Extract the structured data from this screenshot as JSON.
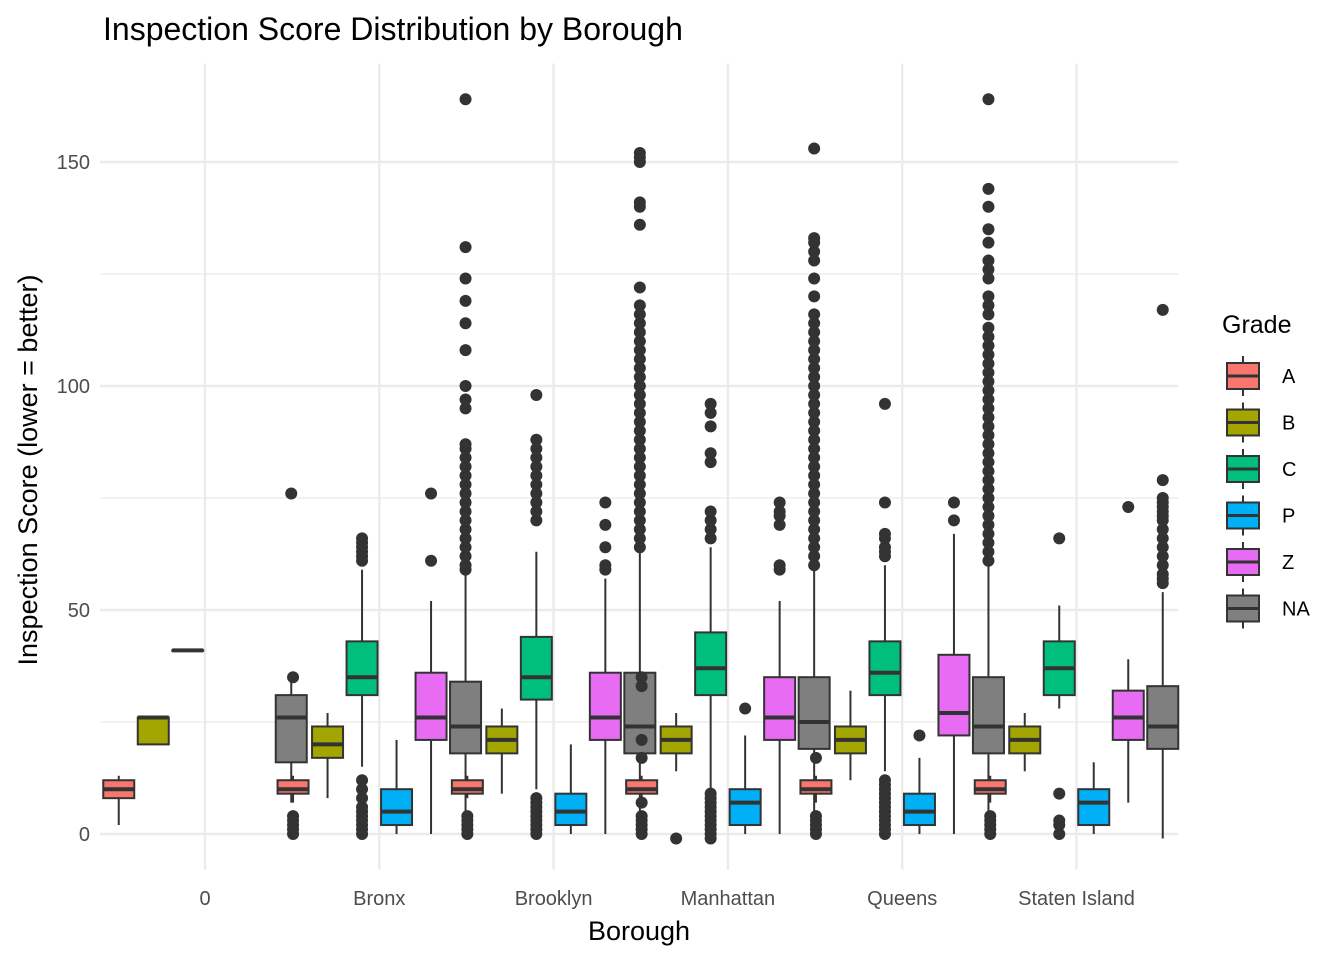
{
  "chart_data": {
    "type": "boxplot",
    "title": "Inspection Score Distribution by Borough",
    "xlabel": "Borough",
    "ylabel": "Inspection Score (lower = better)",
    "ylim": [
      -8,
      172
    ],
    "y_ticks": [
      0,
      50,
      100,
      150
    ],
    "grid": true,
    "legend_title": "Grade",
    "legend_position": "right",
    "categories": [
      "0",
      "Bronx",
      "Brooklyn",
      "Manhattan",
      "Queens",
      "Staten Island"
    ],
    "series": [
      {
        "name": "A",
        "color": "#F8766D"
      },
      {
        "name": "B",
        "color": "#A3A500"
      },
      {
        "name": "C",
        "color": "#00BF7D"
      },
      {
        "name": "P",
        "color": "#00B0F6"
      },
      {
        "name": "Z",
        "color": "#E76BF3"
      },
      {
        "name": "NA",
        "color": "#7F7F7F"
      }
    ],
    "boxes": [
      {
        "category": "0",
        "grade": "A",
        "min": 2,
        "q1": 8,
        "median": 10,
        "q3": 12,
        "max": 13,
        "outliers": []
      },
      {
        "category": "0",
        "grade": "B",
        "min": 20,
        "q1": 20,
        "median": 26,
        "q3": 26,
        "max": 26,
        "outliers": []
      },
      {
        "category": "0",
        "grade": "C",
        "min": 41,
        "q1": 41,
        "median": 41,
        "q3": 41,
        "max": 41,
        "outliers": []
      },
      {
        "category": "0",
        "grade": "NA",
        "min": 7,
        "q1": 16,
        "median": 26,
        "q3": 31,
        "max": 35,
        "outliers": [
          76
        ]
      },
      {
        "category": "Bronx",
        "grade": "A",
        "min": 7,
        "q1": 9,
        "median": 10,
        "q3": 12,
        "max": 13,
        "outliers": [
          0,
          1,
          2,
          3,
          4,
          35
        ]
      },
      {
        "category": "Bronx",
        "grade": "B",
        "min": 8,
        "q1": 17,
        "median": 20,
        "q3": 24,
        "max": 27,
        "outliers": []
      },
      {
        "category": "Bronx",
        "grade": "C",
        "min": 15,
        "q1": 31,
        "median": 35,
        "q3": 43,
        "max": 59,
        "outliers": [
          0,
          1,
          2,
          3,
          4,
          5,
          6,
          8,
          10,
          12,
          61,
          62,
          63,
          64,
          65,
          66
        ]
      },
      {
        "category": "Bronx",
        "grade": "P",
        "min": 0,
        "q1": 2,
        "median": 5,
        "q3": 10,
        "max": 21,
        "outliers": []
      },
      {
        "category": "Bronx",
        "grade": "Z",
        "min": 0,
        "q1": 21,
        "median": 26,
        "q3": 36,
        "max": 52,
        "outliers": [
          61,
          76
        ]
      },
      {
        "category": "Bronx",
        "grade": "NA",
        "min": -1,
        "q1": 18,
        "median": 24,
        "q3": 34,
        "max": 58,
        "outliers": [
          59,
          60,
          62,
          64,
          66,
          68,
          70,
          72,
          74,
          76,
          78,
          80,
          82,
          84,
          86,
          87,
          95,
          97,
          100,
          108,
          114,
          119,
          124,
          131,
          164
        ]
      },
      {
        "category": "Brooklyn",
        "grade": "A",
        "min": 8,
        "q1": 9,
        "median": 10,
        "q3": 12,
        "max": 13,
        "outliers": [
          0,
          1,
          2,
          3,
          4
        ]
      },
      {
        "category": "Brooklyn",
        "grade": "B",
        "min": 9,
        "q1": 18,
        "median": 21,
        "q3": 24,
        "max": 28,
        "outliers": []
      },
      {
        "category": "Brooklyn",
        "grade": "C",
        "min": 10,
        "q1": 30,
        "median": 35,
        "q3": 44,
        "max": 63,
        "outliers": [
          0,
          1,
          2,
          3,
          4,
          5,
          6,
          7,
          8,
          70,
          72,
          74,
          76,
          78,
          80,
          82,
          84,
          86,
          88,
          98
        ]
      },
      {
        "category": "Brooklyn",
        "grade": "P",
        "min": 0,
        "q1": 2,
        "median": 5,
        "q3": 9,
        "max": 20,
        "outliers": []
      },
      {
        "category": "Brooklyn",
        "grade": "Z",
        "min": 0,
        "q1": 21,
        "median": 26,
        "q3": 36,
        "max": 57,
        "outliers": [
          59,
          60,
          64,
          69,
          74
        ]
      },
      {
        "category": "Brooklyn",
        "grade": "NA",
        "min": -1,
        "q1": 18,
        "median": 24,
        "q3": 36,
        "max": 63,
        "outliers": [
          64,
          66,
          68,
          70,
          72,
          74,
          76,
          78,
          80,
          82,
          84,
          86,
          88,
          90,
          92,
          94,
          96,
          98,
          100,
          102,
          104,
          106,
          108,
          110,
          112,
          114,
          116,
          118,
          122,
          136,
          140,
          141,
          150,
          151,
          152
        ]
      },
      {
        "category": "Manhattan",
        "grade": "A",
        "min": 8,
        "q1": 9,
        "median": 10,
        "q3": 12,
        "max": 13,
        "outliers": [
          0,
          1,
          2,
          3,
          4,
          7,
          17,
          21,
          33,
          35
        ]
      },
      {
        "category": "Manhattan",
        "grade": "B",
        "min": 14,
        "q1": 18,
        "median": 21,
        "q3": 24,
        "max": 27,
        "outliers": [
          -1
        ]
      },
      {
        "category": "Manhattan",
        "grade": "C",
        "min": 10,
        "q1": 31,
        "median": 37,
        "q3": 45,
        "max": 64,
        "outliers": [
          -1,
          0,
          1,
          2,
          3,
          4,
          5,
          6,
          7,
          8,
          9,
          66,
          68,
          70,
          72,
          83,
          85,
          91,
          94,
          96
        ]
      },
      {
        "category": "Manhattan",
        "grade": "P",
        "min": 0,
        "q1": 2,
        "median": 7,
        "q3": 10,
        "max": 22,
        "outliers": [
          28
        ]
      },
      {
        "category": "Manhattan",
        "grade": "Z",
        "min": 0,
        "q1": 21,
        "median": 26,
        "q3": 35,
        "max": 52,
        "outliers": [
          59,
          60,
          69,
          71,
          72,
          74
        ]
      },
      {
        "category": "Manhattan",
        "grade": "NA",
        "min": -1,
        "q1": 19,
        "median": 25,
        "q3": 35,
        "max": 59,
        "outliers": [
          60,
          62,
          64,
          66,
          68,
          70,
          72,
          74,
          76,
          78,
          80,
          82,
          84,
          86,
          88,
          90,
          92,
          94,
          96,
          98,
          100,
          102,
          104,
          106,
          108,
          110,
          112,
          114,
          116,
          120,
          124,
          128,
          130,
          132,
          133,
          153
        ]
      },
      {
        "category": "Queens",
        "grade": "A",
        "min": 7,
        "q1": 9,
        "median": 10,
        "q3": 12,
        "max": 13,
        "outliers": [
          0,
          1,
          2,
          3,
          4,
          17
        ]
      },
      {
        "category": "Queens",
        "grade": "B",
        "min": 12,
        "q1": 18,
        "median": 21,
        "q3": 24,
        "max": 32,
        "outliers": []
      },
      {
        "category": "Queens",
        "grade": "C",
        "min": 14,
        "q1": 31,
        "median": 36,
        "q3": 43,
        "max": 60,
        "outliers": [
          0,
          1,
          2,
          3,
          4,
          5,
          6,
          7,
          8,
          9,
          10,
          11,
          12,
          62,
          63,
          64,
          66,
          67,
          74,
          96
        ]
      },
      {
        "category": "Queens",
        "grade": "P",
        "min": 0,
        "q1": 2,
        "median": 5,
        "q3": 9,
        "max": 17,
        "outliers": [
          22
        ]
      },
      {
        "category": "Queens",
        "grade": "Z",
        "min": 0,
        "q1": 22,
        "median": 27,
        "q3": 40,
        "max": 67,
        "outliers": [
          70,
          74
        ]
      },
      {
        "category": "Queens",
        "grade": "NA",
        "min": -1,
        "q1": 18,
        "median": 24,
        "q3": 35,
        "max": 60,
        "outliers": [
          61,
          63,
          65,
          67,
          69,
          71,
          73,
          75,
          77,
          79,
          81,
          83,
          85,
          87,
          89,
          91,
          93,
          95,
          97,
          99,
          101,
          103,
          105,
          107,
          109,
          111,
          113,
          116,
          118,
          120,
          124,
          126,
          128,
          132,
          135,
          140,
          144,
          164
        ]
      },
      {
        "category": "Staten Island",
        "grade": "A",
        "min": 7,
        "q1": 9,
        "median": 10,
        "q3": 12,
        "max": 13,
        "outliers": [
          0,
          1,
          2,
          3,
          4
        ]
      },
      {
        "category": "Staten Island",
        "grade": "B",
        "min": 14,
        "q1": 18,
        "median": 21,
        "q3": 24,
        "max": 27,
        "outliers": []
      },
      {
        "category": "Staten Island",
        "grade": "C",
        "min": 28,
        "q1": 31,
        "median": 37,
        "q3": 43,
        "max": 51,
        "outliers": [
          0,
          2,
          3,
          9,
          66
        ]
      },
      {
        "category": "Staten Island",
        "grade": "P",
        "min": 0,
        "q1": 2,
        "median": 7,
        "q3": 10,
        "max": 16,
        "outliers": []
      },
      {
        "category": "Staten Island",
        "grade": "Z",
        "min": 7,
        "q1": 21,
        "median": 26,
        "q3": 32,
        "max": 39,
        "outliers": [
          73
        ]
      },
      {
        "category": "Staten Island",
        "grade": "NA",
        "min": -1,
        "q1": 19,
        "median": 24,
        "q3": 33,
        "max": 54,
        "outliers": [
          56,
          57,
          58,
          60,
          62,
          64,
          66,
          68,
          70,
          71,
          72,
          73,
          74,
          75,
          79,
          117
        ]
      }
    ]
  }
}
